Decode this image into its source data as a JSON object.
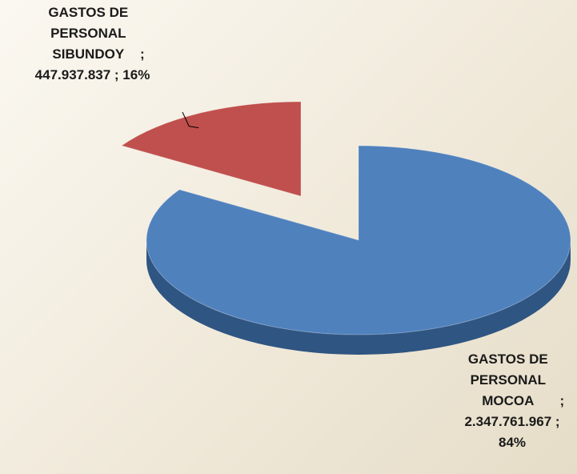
{
  "chart_data": {
    "type": "pie3d",
    "categories": [
      "GASTOS DE PERSONAL MOCOA",
      "GASTOS DE PERSONAL SIBUNDOY"
    ],
    "values": [
      2347761967,
      447937837
    ],
    "value_labels": [
      "; 2.347.761.967 ; 84%",
      "; 447.937.837 ; 16%"
    ],
    "colors": [
      "#4f81bd",
      "#c0504d"
    ],
    "side_colors": [
      "#2f5582",
      "#5c1f1d"
    ],
    "exploded": [
      false,
      true
    ]
  }
}
